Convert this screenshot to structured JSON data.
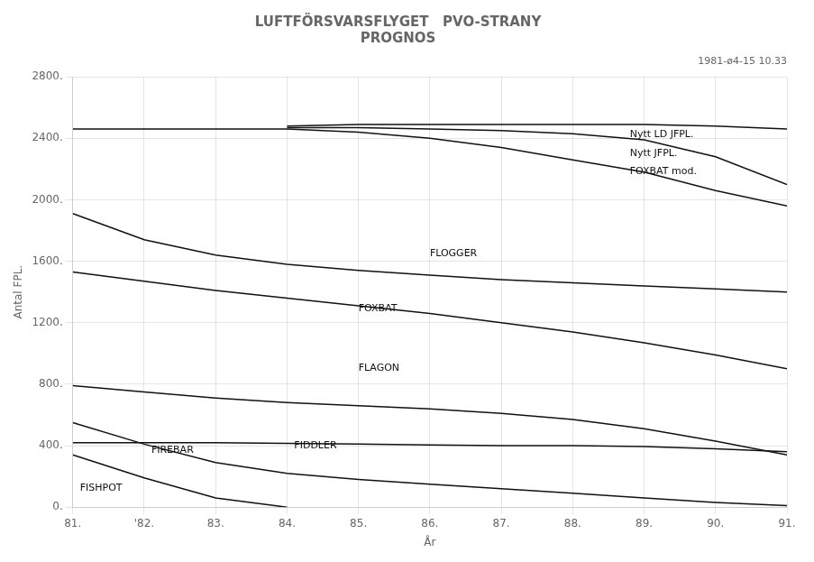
{
  "chart_data": {
    "type": "line",
    "title": [
      "LUFTFÖRSVARSFLYGET   PVO-STRANY",
      "PROGNOS"
    ],
    "subtitle": "1981-ø4-15 10.33",
    "xlabel": "År",
    "ylabel": "Antal FPL.",
    "color": "#111111",
    "grid": true,
    "xlim": [
      81,
      91
    ],
    "xticks": [
      {
        "value": 81,
        "label": "81."
      },
      {
        "value": 82,
        "label": "'82."
      },
      {
        "value": 83,
        "label": "83."
      },
      {
        "value": 84,
        "label": "84."
      },
      {
        "value": 85,
        "label": "85."
      },
      {
        "value": 86,
        "label": "86."
      },
      {
        "value": 87,
        "label": "87."
      },
      {
        "value": 88,
        "label": "88."
      },
      {
        "value": 89,
        "label": "89."
      },
      {
        "value": 90,
        "label": "90."
      },
      {
        "value": 91,
        "label": "91."
      }
    ],
    "ylim": [
      0,
      2800
    ],
    "yticks": [
      {
        "value": 0,
        "label": "0."
      },
      {
        "value": 400,
        "label": "400."
      },
      {
        "value": 800,
        "label": "800."
      },
      {
        "value": 1200,
        "label": "1200."
      },
      {
        "value": 1600,
        "label": "1600."
      },
      {
        "value": 2000,
        "label": "2000."
      },
      {
        "value": 2400,
        "label": "2400."
      },
      {
        "value": 2800,
        "label": "2800."
      }
    ],
    "series": [
      {
        "name": "FISHPOT",
        "x": [
          81,
          82,
          83,
          84
        ],
        "values": [
          340,
          190,
          60,
          0
        ]
      },
      {
        "name": "FIREBAR",
        "x": [
          81,
          82,
          83,
          84,
          85,
          86,
          87,
          88,
          89,
          90,
          91
        ],
        "values": [
          550,
          410,
          290,
          220,
          180,
          150,
          120,
          90,
          60,
          30,
          10
        ]
      },
      {
        "name": "FIDDLER",
        "x": [
          81,
          82,
          83,
          84,
          85,
          86,
          87,
          88,
          89,
          90,
          91
        ],
        "values": [
          420,
          420,
          420,
          415,
          410,
          405,
          400,
          400,
          395,
          380,
          360
        ]
      },
      {
        "name": "FLAGON",
        "x": [
          81,
          82,
          83,
          84,
          85,
          86,
          87,
          88,
          89,
          90,
          91
        ],
        "values": [
          790,
          750,
          710,
          680,
          660,
          640,
          610,
          570,
          510,
          430,
          340
        ]
      },
      {
        "name": "FOXBAT",
        "x": [
          81,
          82,
          83,
          84,
          85,
          86,
          87,
          88,
          89,
          90,
          91
        ],
        "values": [
          1530,
          1470,
          1410,
          1360,
          1310,
          1260,
          1200,
          1140,
          1070,
          990,
          900
        ]
      },
      {
        "name": "FLOGGER",
        "x": [
          81,
          82,
          83,
          84,
          85,
          86,
          87,
          88,
          89,
          90,
          91
        ],
        "values": [
          1910,
          1740,
          1640,
          1580,
          1540,
          1510,
          1480,
          1460,
          1440,
          1420,
          1400
        ]
      },
      {
        "name": "FOXBAT mod.",
        "x": [
          81,
          82,
          83,
          84,
          85,
          86,
          87,
          88,
          89,
          90,
          91
        ],
        "values": [
          2460,
          2460,
          2460,
          2460,
          2440,
          2400,
          2340,
          2260,
          2180,
          2060,
          1960
        ]
      },
      {
        "name": "Nytt JFPL.",
        "x": [
          84,
          85,
          86,
          87,
          88,
          89,
          90,
          91
        ],
        "values": [
          2470,
          2470,
          2460,
          2450,
          2430,
          2390,
          2280,
          2100
        ]
      },
      {
        "name": "Nytt LD JFPL.",
        "x": [
          84,
          85,
          86,
          87,
          88,
          89,
          90,
          91
        ],
        "values": [
          2480,
          2490,
          2490,
          2490,
          2490,
          2490,
          2480,
          2460
        ]
      }
    ],
    "annotations": [
      {
        "text": "FISHPOT",
        "x": 81.1,
        "y": 90
      },
      {
        "text": "FIREBAR",
        "x": 82.1,
        "y": 340
      },
      {
        "text": "FIDDLER",
        "x": 84.1,
        "y": 365
      },
      {
        "text": "FLAGON",
        "x": 85.0,
        "y": 870
      },
      {
        "text": "FOXBAT",
        "x": 85.0,
        "y": 1260
      },
      {
        "text": "FLOGGER",
        "x": 86.0,
        "y": 1620
      },
      {
        "text": "FOXBAT mod.",
        "x": 88.8,
        "y": 2150
      },
      {
        "text": "Nytt JFPL.",
        "x": 88.8,
        "y": 2270
      },
      {
        "text": "Nytt LD JFPL.",
        "x": 88.8,
        "y": 2390
      }
    ]
  }
}
